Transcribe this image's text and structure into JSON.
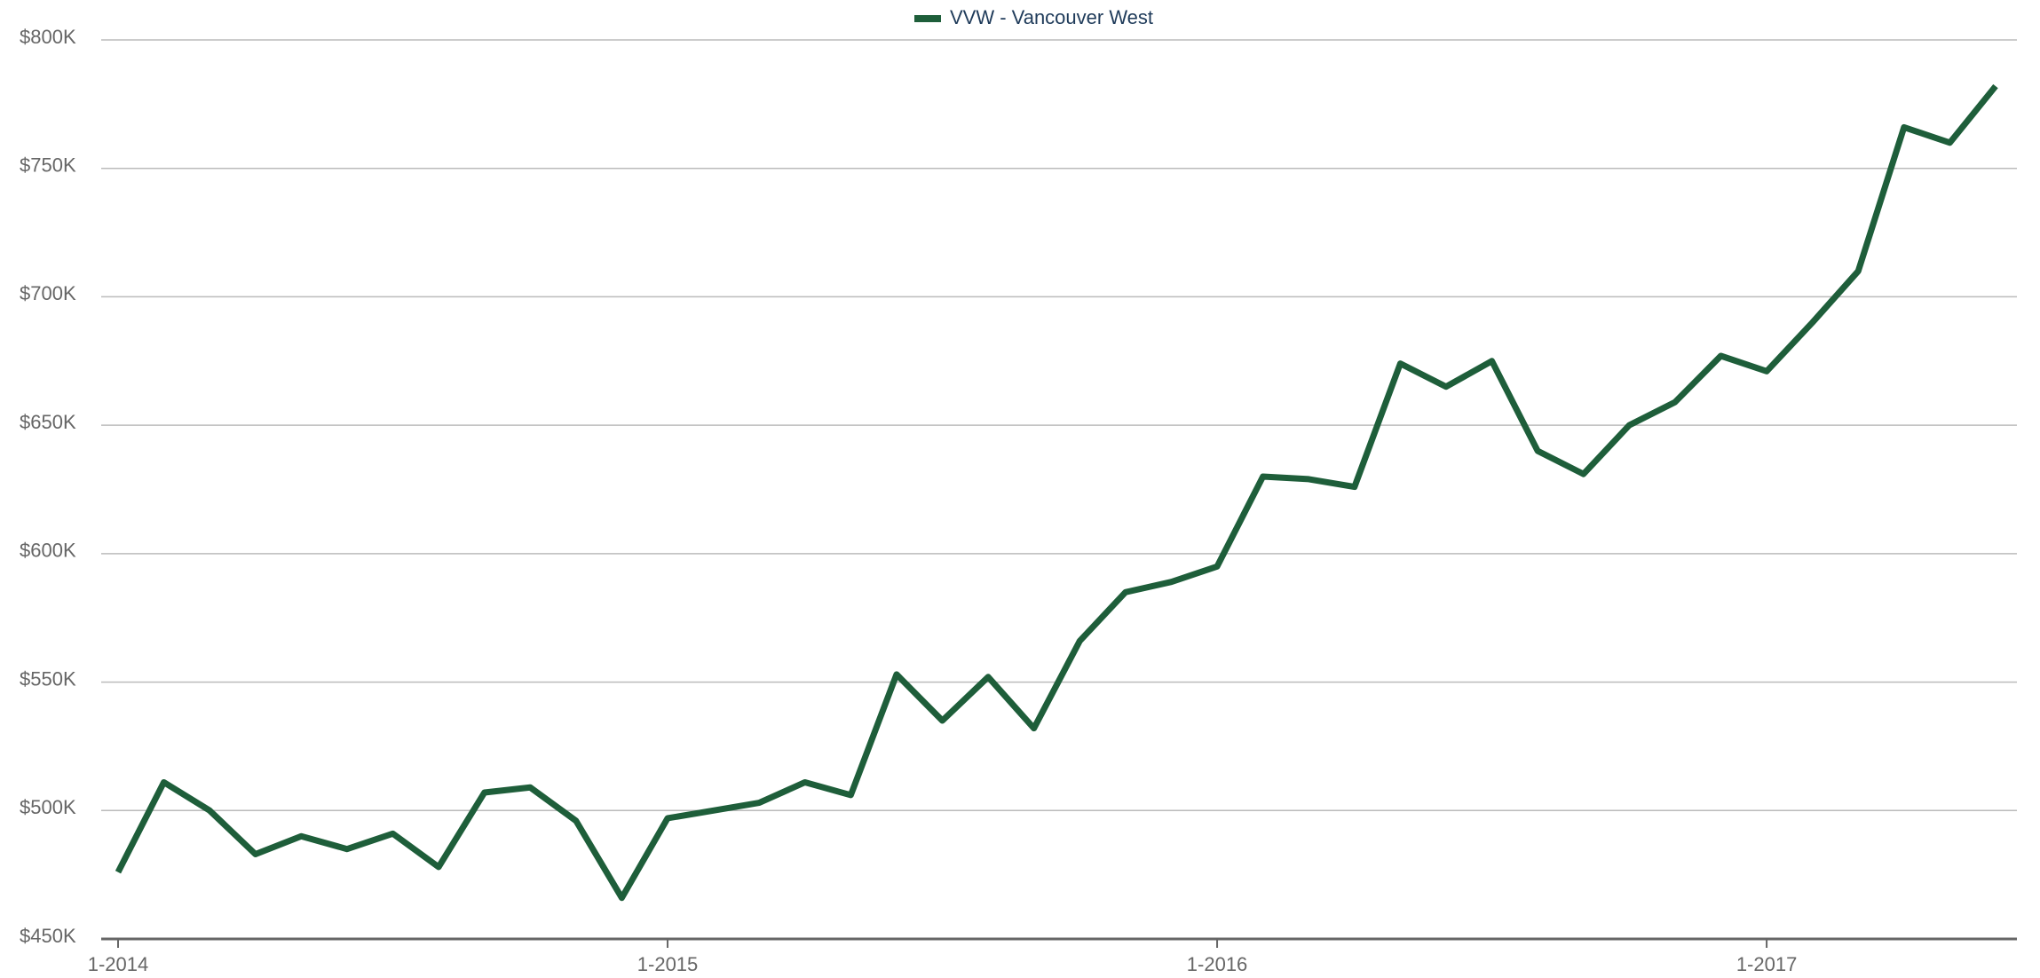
{
  "chart_data": {
    "type": "line",
    "categories": [
      "1-2014",
      null,
      null,
      null,
      null,
      null,
      null,
      null,
      null,
      null,
      null,
      null,
      "1-2015",
      null,
      null,
      null,
      null,
      null,
      null,
      null,
      null,
      null,
      null,
      null,
      "1-2016",
      null,
      null,
      null,
      null,
      null,
      null,
      null,
      null,
      null,
      null,
      null,
      "1-2017",
      null,
      null,
      null,
      null,
      null
    ],
    "series": [
      {
        "name": "VVW - Vancouver West",
        "color": "#1e5e3a",
        "values": [
          476000,
          511000,
          500000,
          483000,
          490000,
          485000,
          491000,
          478000,
          507000,
          509000,
          496000,
          466000,
          497000,
          500000,
          503000,
          511000,
          506000,
          553000,
          535000,
          552000,
          532000,
          566000,
          585000,
          589000,
          595000,
          630000,
          629000,
          626000,
          674000,
          665000,
          675000,
          640000,
          631000,
          650000,
          659000,
          677000,
          671000,
          690000,
          710000,
          766000,
          760000,
          782000
        ]
      }
    ],
    "ylim": [
      450000,
      800000
    ],
    "yticks": [
      {
        "value": 450000,
        "label": "$450K"
      },
      {
        "value": 500000,
        "label": "$500K"
      },
      {
        "value": 550000,
        "label": "$550K"
      },
      {
        "value": 600000,
        "label": "$600K"
      },
      {
        "value": 650000,
        "label": "$650K"
      },
      {
        "value": 700000,
        "label": "$700K"
      },
      {
        "value": 750000,
        "label": "$750K"
      },
      {
        "value": 800000,
        "label": "$800K"
      }
    ],
    "grid": true,
    "legend": "top"
  }
}
